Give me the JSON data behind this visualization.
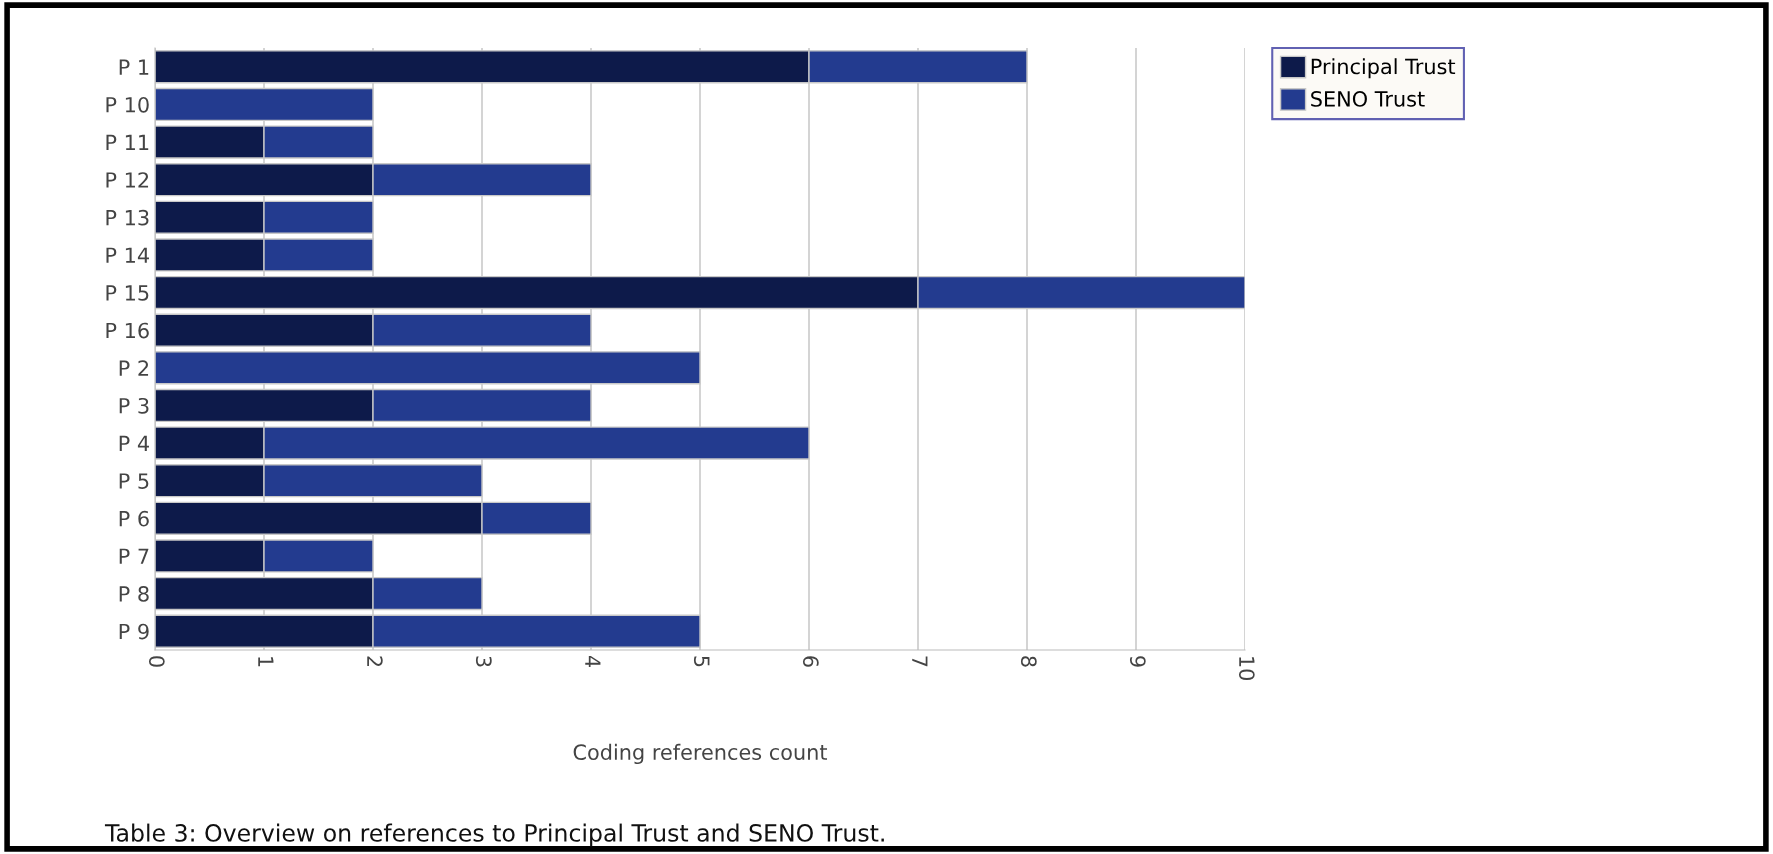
{
  "chart_data": {
    "type": "bar",
    "orientation": "horizontal",
    "stacked": true,
    "categories": [
      "P 1",
      "P 10",
      "P 11",
      "P 12",
      "P 13",
      "P 14",
      "P 15",
      "P 16",
      "P 2",
      "P 3",
      "P 4",
      "P 5",
      "P 6",
      "P 7",
      "P 8",
      "P 9"
    ],
    "series": [
      {
        "name": "Principal Trust",
        "color": "#0d1a4a",
        "values": [
          6,
          0,
          1,
          2,
          1,
          1,
          7,
          2,
          0,
          2,
          1,
          1,
          3,
          1,
          2,
          2
        ]
      },
      {
        "name": "SENO Trust",
        "color": "#233b8f",
        "values": [
          2,
          2,
          1,
          2,
          1,
          1,
          3,
          2,
          5,
          2,
          5,
          2,
          1,
          1,
          1,
          3
        ]
      }
    ],
    "xlim": [
      0,
      10
    ],
    "xticks": [
      0,
      1,
      2,
      3,
      4,
      5,
      6,
      7,
      8,
      9,
      10
    ],
    "xlabel": "Coding references count",
    "grid": "x",
    "legend": "right",
    "annotations": [
      "Table 3: Overview on references to Principal Trust and SENO Trust."
    ]
  }
}
